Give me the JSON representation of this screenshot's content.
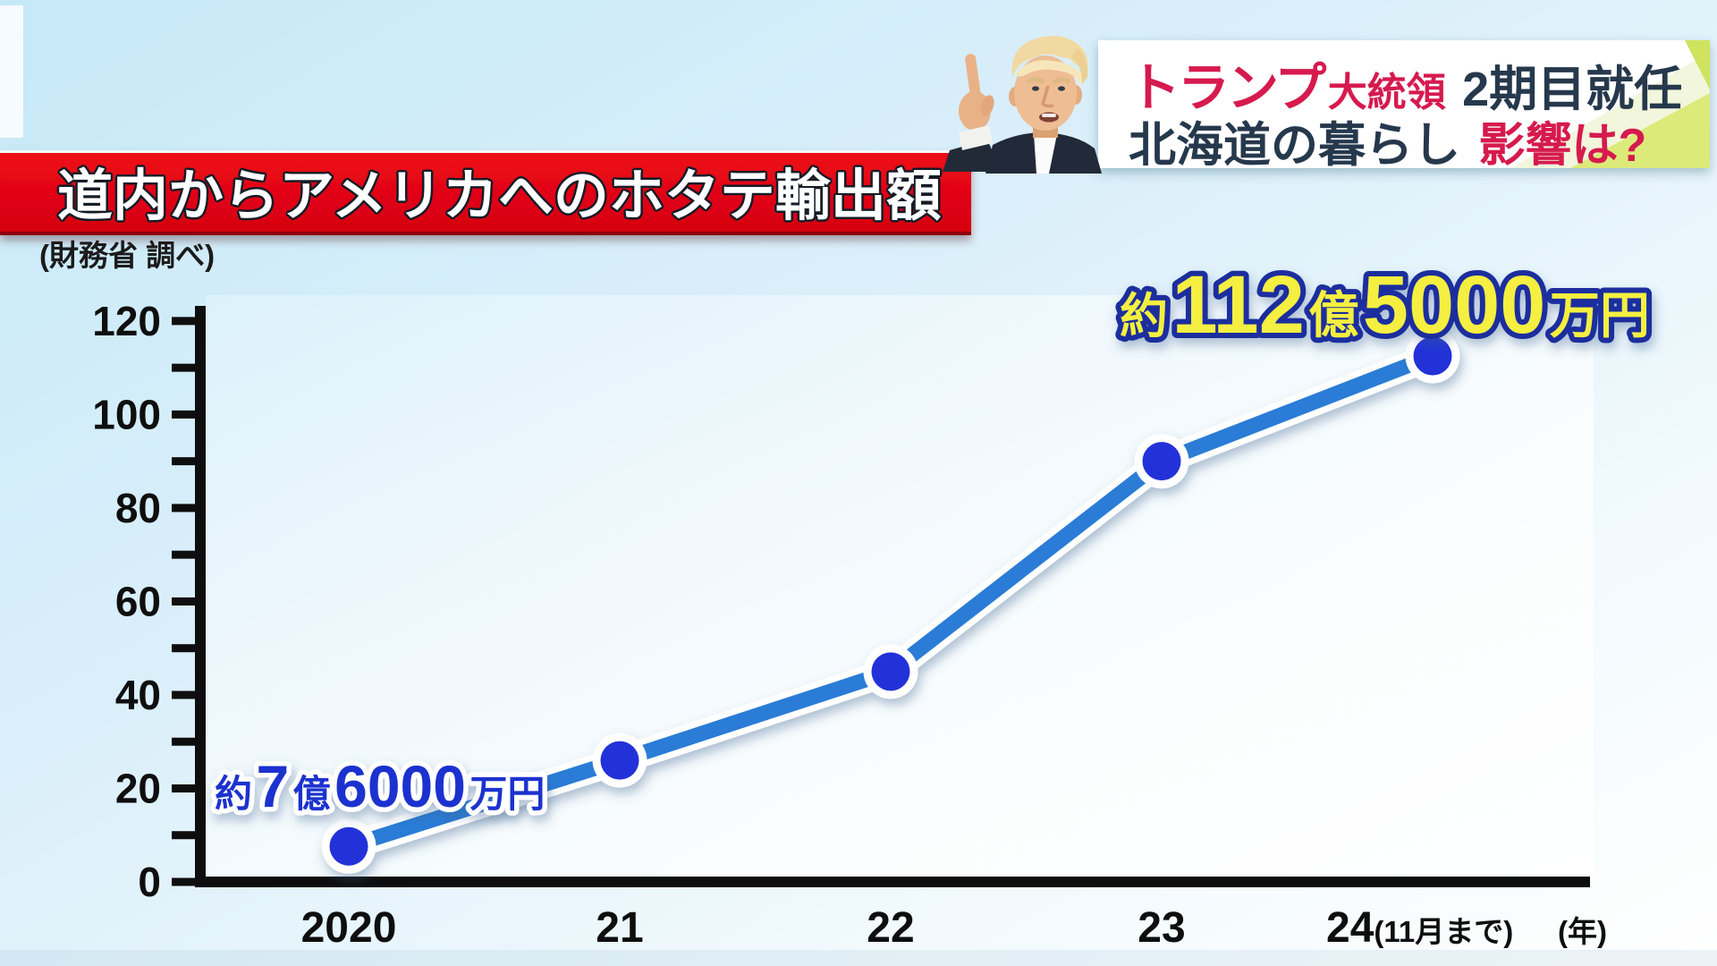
{
  "header": {
    "line1": {
      "brand": "トランプ",
      "role": "大統領",
      "rest": "2期目就任"
    },
    "line2": {
      "main": "北海道の暮らし",
      "accent": "影響は?"
    }
  },
  "banner": {
    "title": "道内からアメリカへのホタテ輸出額"
  },
  "source_note": "(財務省 調べ)",
  "chart_data": {
    "type": "line",
    "title": "道内からアメリカへのホタテ輸出額",
    "source": "(財務省 調べ)",
    "categories": [
      "2020",
      "21",
      "22",
      "23",
      "24"
    ],
    "last_category_note": "(11月まで)",
    "x_axis_unit": "(年)",
    "values": [
      7.6,
      26,
      45,
      90,
      112.5
    ],
    "unit": "億円",
    "ylim": [
      0,
      120
    ],
    "tick_step": 10,
    "label_step": 20,
    "grid": false,
    "legend": "none",
    "annotations": [
      {
        "point": "2020",
        "text": "約7億6000万円"
      },
      {
        "point": "24",
        "text": "約112億5000万円"
      }
    ]
  },
  "labels": {
    "first": {
      "approx": "約",
      "v1": "7",
      "u1": "億",
      "v2": "6000",
      "u2": "万円"
    },
    "last": {
      "approx": "約",
      "v1": "112",
      "u1": "億",
      "v2": "5000",
      "u2": "万円"
    }
  },
  "colors": {
    "banner_red": "#e60012",
    "headline_crimson": "#d61a4e",
    "headline_navy": "#26384c",
    "line_blue": "#2b7cd6",
    "dot_blue": "#2232d8",
    "label_blue": "#1c33cf",
    "label_yellow": "#f4ef3f",
    "label_yellow_outline": "#1c2f9e",
    "lime_accent": "#dcea79",
    "background_sky": "#cdeaf7"
  }
}
